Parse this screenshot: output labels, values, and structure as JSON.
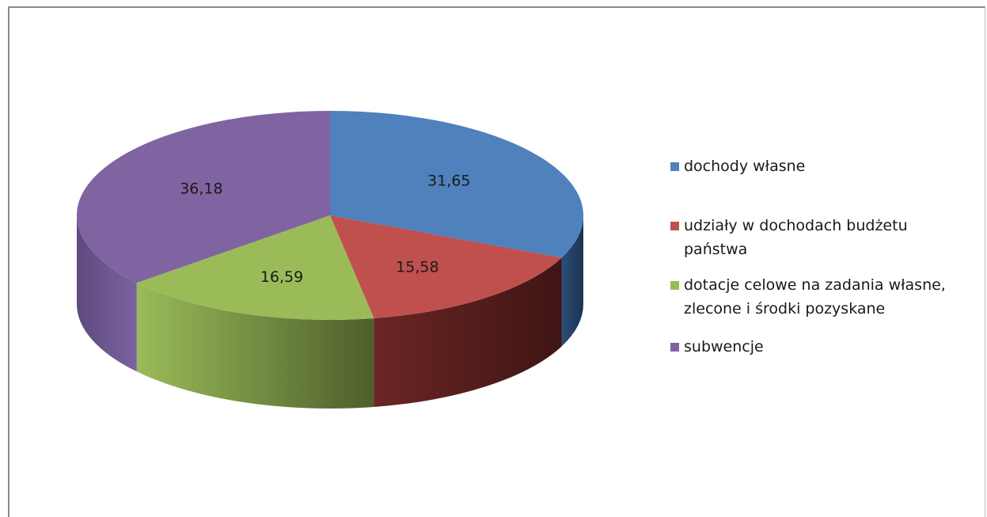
{
  "chart_data": {
    "type": "pie",
    "style": "3d",
    "categories": [
      "dochody własne",
      "udziały w dochodach budżetu państwa",
      "dotacje celowe na zadania własne, zlecone i środki pozyskane",
      "subwencje"
    ],
    "values": [
      31.65,
      15.58,
      16.59,
      36.18
    ],
    "data_labels": [
      "31,65",
      "15,58",
      "16,59",
      "36,18"
    ],
    "colors": [
      "#4f81bd",
      "#c0504d",
      "#9bbb59",
      "#8064a2"
    ],
    "legend": {
      "placement": "right",
      "entries": [
        {
          "lines": [
            "dochody własne"
          ]
        },
        {
          "lines": [
            "udziały w dochodach budżetu",
            "państwa"
          ]
        },
        {
          "lines": [
            "dotacje celowe na zadania własne,",
            "zlecone i środki pozyskane"
          ]
        },
        {
          "lines": [
            "subwencje"
          ]
        }
      ]
    }
  }
}
